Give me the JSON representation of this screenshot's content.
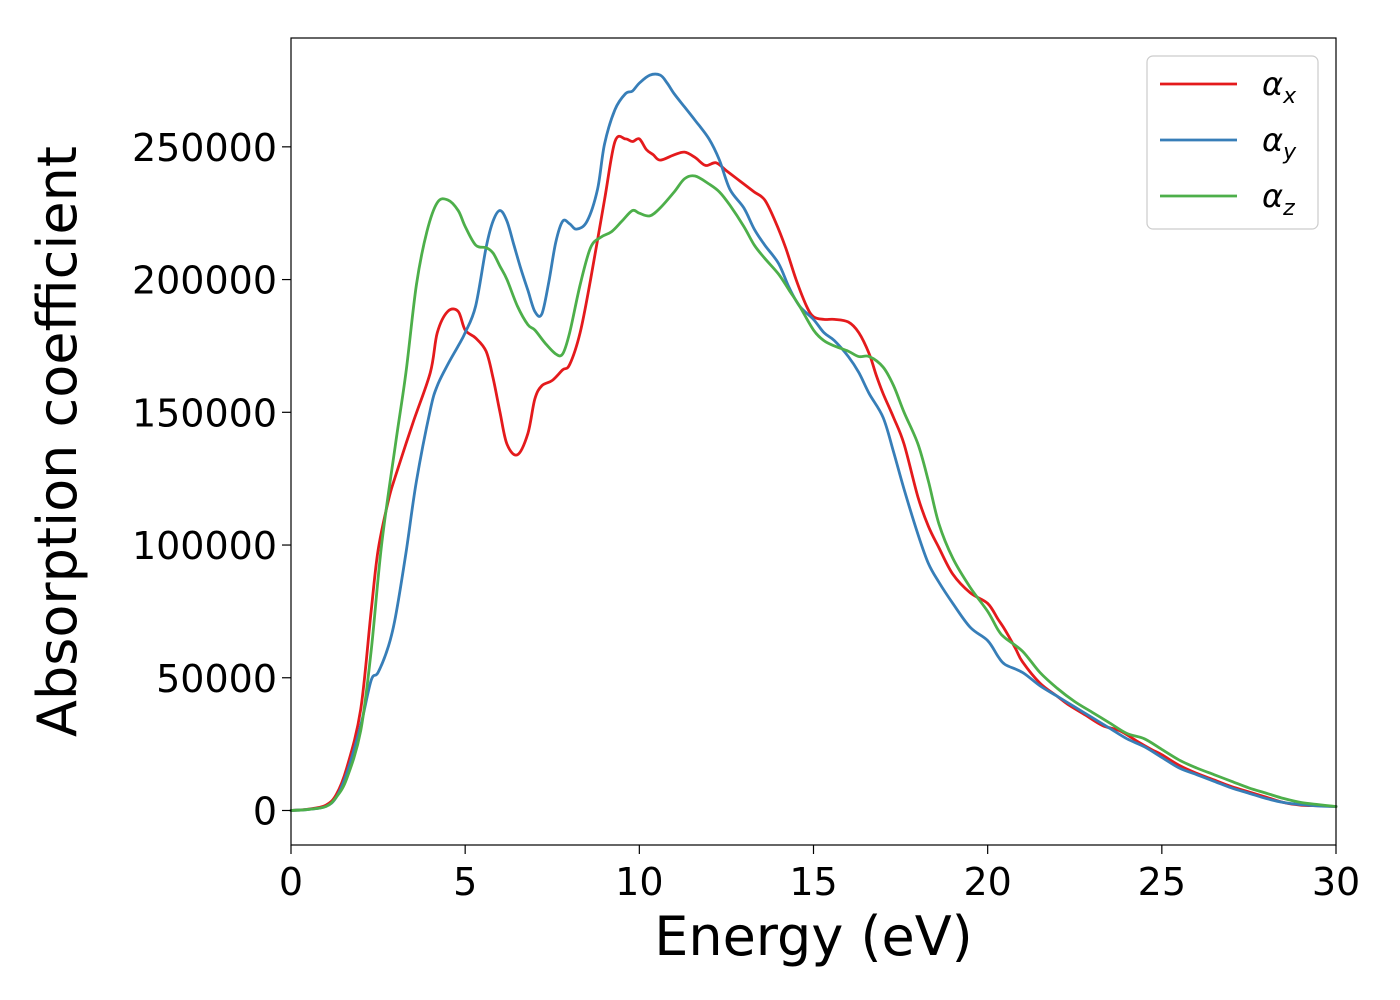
{
  "chart_data": {
    "type": "line",
    "xlabel": "Energy (eV)",
    "ylabel": "Absorption coefficient",
    "xlim": [
      0,
      30
    ],
    "ylim": [
      -13000,
      291000
    ],
    "xticks": [
      0,
      5,
      10,
      15,
      20,
      25,
      30
    ],
    "yticks": [
      0,
      50000,
      100000,
      150000,
      200000,
      250000
    ],
    "grid": false,
    "legend_position": "upper right",
    "series": [
      {
        "name": "α",
        "subscript": "x",
        "color": "#e41a1c",
        "x": [
          0,
          0.5,
          1.0,
          1.3,
          1.6,
          2.0,
          2.3,
          2.5,
          2.8,
          3.0,
          3.5,
          4.0,
          4.2,
          4.5,
          4.8,
          5.0,
          5.3,
          5.6,
          5.8,
          6.0,
          6.2,
          6.5,
          6.8,
          7.0,
          7.2,
          7.5,
          7.8,
          8.0,
          8.3,
          8.6,
          9.0,
          9.3,
          9.6,
          9.8,
          10.0,
          10.2,
          10.4,
          10.6,
          11.0,
          11.3,
          11.6,
          11.9,
          12.2,
          12.5,
          12.8,
          13.0,
          13.3,
          13.6,
          13.9,
          14.2,
          14.5,
          14.8,
          15.0,
          15.3,
          15.6,
          16.0,
          16.3,
          16.6,
          16.8,
          17.0,
          17.3,
          17.6,
          18.0,
          18.3,
          18.6,
          19.0,
          19.5,
          20.0,
          20.3,
          20.5,
          20.8,
          21.0,
          21.5,
          22.0,
          22.3,
          22.8,
          23.3,
          23.8,
          24.3,
          24.7,
          25.0,
          25.5,
          26.0,
          26.5,
          27.0,
          27.5,
          28.0,
          28.5,
          29.0,
          29.5,
          30.0
        ],
        "y": [
          0,
          500,
          2000,
          6000,
          16000,
          38000,
          75000,
          98000,
          117000,
          126000,
          146000,
          165000,
          180000,
          188000,
          188000,
          181000,
          178000,
          173000,
          163000,
          150000,
          138000,
          134000,
          142000,
          155000,
          160000,
          162000,
          166000,
          168000,
          180000,
          200000,
          230000,
          252000,
          253000,
          252000,
          253000,
          249000,
          247000,
          245000,
          247000,
          248000,
          246000,
          243000,
          244000,
          241000,
          238000,
          236000,
          233000,
          230000,
          222000,
          212000,
          200000,
          190000,
          186000,
          185000,
          185000,
          184000,
          180000,
          172000,
          164000,
          157000,
          148000,
          138000,
          118000,
          107000,
          99000,
          89000,
          82000,
          78000,
          72000,
          68000,
          61000,
          56000,
          48000,
          43000,
          40000,
          36000,
          32000,
          30000,
          26000,
          23000,
          21000,
          17000,
          14000,
          11500,
          9000,
          7000,
          5000,
          3000,
          2000,
          1800,
          1500
        ]
      },
      {
        "name": "α",
        "subscript": "y",
        "color": "#377eb8",
        "x": [
          0,
          0.5,
          1.0,
          1.3,
          1.6,
          2.0,
          2.3,
          2.5,
          2.8,
          3.0,
          3.3,
          3.6,
          4.0,
          4.2,
          4.5,
          4.8,
          5.0,
          5.3,
          5.6,
          5.8,
          6.0,
          6.2,
          6.4,
          6.6,
          6.8,
          7.0,
          7.2,
          7.4,
          7.6,
          7.8,
          8.0,
          8.2,
          8.5,
          8.8,
          9.0,
          9.3,
          9.6,
          9.8,
          10.0,
          10.3,
          10.6,
          10.8,
          11.0,
          11.3,
          11.6,
          12.0,
          12.3,
          12.6,
          13.0,
          13.3,
          13.6,
          14.0,
          14.3,
          14.6,
          15.0,
          15.3,
          15.6,
          16.0,
          16.3,
          16.6,
          17.0,
          17.3,
          17.6,
          18.0,
          18.3,
          18.6,
          19.0,
          19.5,
          20.0,
          20.3,
          20.5,
          21.0,
          21.5,
          22.0,
          22.5,
          23.0,
          23.5,
          24.0,
          24.5,
          25.0,
          25.5,
          26.0,
          26.5,
          27.0,
          27.5,
          28.0,
          28.5,
          29.0,
          29.5,
          30.0
        ],
        "y": [
          0,
          400,
          1500,
          5000,
          14000,
          32000,
          49000,
          52000,
          62000,
          73000,
          97000,
          124000,
          151000,
          160000,
          168000,
          175000,
          180000,
          190000,
          212000,
          222000,
          226000,
          222000,
          213000,
          204000,
          196000,
          188000,
          187000,
          199000,
          214000,
          222000,
          221000,
          219000,
          222000,
          234000,
          251000,
          264000,
          270000,
          271000,
          274000,
          277000,
          277000,
          274000,
          270000,
          265000,
          260000,
          253000,
          245000,
          234000,
          227000,
          219000,
          213000,
          206000,
          197000,
          190000,
          185000,
          180000,
          177000,
          171000,
          165000,
          157000,
          148000,
          135000,
          121000,
          104000,
          93000,
          86000,
          78000,
          69000,
          64000,
          58000,
          55000,
          52000,
          47000,
          43000,
          39000,
          35000,
          31000,
          27000,
          24000,
          20000,
          16000,
          13500,
          11000,
          8500,
          6500,
          4500,
          3000,
          2200,
          1700,
          1500
        ]
      },
      {
        "name": "α",
        "subscript": "z",
        "color": "#4daf4a",
        "x": [
          0,
          0.5,
          1.0,
          1.3,
          1.6,
          2.0,
          2.3,
          2.6,
          3.0,
          3.3,
          3.6,
          3.9,
          4.2,
          4.5,
          4.8,
          5.0,
          5.3,
          5.6,
          5.8,
          6.0,
          6.2,
          6.5,
          6.8,
          7.0,
          7.3,
          7.6,
          7.8,
          8.0,
          8.3,
          8.6,
          8.9,
          9.2,
          9.5,
          9.8,
          10.0,
          10.3,
          10.6,
          11.0,
          11.3,
          11.6,
          12.0,
          12.3,
          12.6,
          13.0,
          13.3,
          13.6,
          14.0,
          14.3,
          14.6,
          15.0,
          15.3,
          15.6,
          16.0,
          16.3,
          16.6,
          17.0,
          17.3,
          17.6,
          18.0,
          18.3,
          18.6,
          19.0,
          19.5,
          20.0,
          20.3,
          20.5,
          21.0,
          21.5,
          22.0,
          22.5,
          23.0,
          23.5,
          24.0,
          24.5,
          25.0,
          25.5,
          26.0,
          26.5,
          27.0,
          27.5,
          28.0,
          28.5,
          29.0,
          29.5,
          30.0
        ],
        "y": [
          0,
          400,
          1500,
          5000,
          12000,
          30000,
          60000,
          100000,
          138000,
          165000,
          198000,
          218000,
          229000,
          230000,
          226000,
          220000,
          213000,
          212000,
          210000,
          205000,
          200000,
          190000,
          183000,
          181000,
          176000,
          172000,
          172000,
          180000,
          198000,
          212000,
          216000,
          218000,
          222000,
          226000,
          225000,
          224000,
          227000,
          233000,
          238000,
          239000,
          236000,
          233000,
          228000,
          220000,
          213000,
          208000,
          202000,
          196000,
          190000,
          181000,
          177000,
          175000,
          173000,
          171000,
          171000,
          167000,
          160000,
          150000,
          138000,
          124000,
          108000,
          95000,
          84000,
          75000,
          68000,
          65000,
          60000,
          52000,
          46000,
          41000,
          37000,
          33000,
          29000,
          27000,
          23000,
          19000,
          16000,
          13500,
          11000,
          8500,
          6500,
          4500,
          3000,
          2200,
          1500
        ]
      }
    ]
  }
}
